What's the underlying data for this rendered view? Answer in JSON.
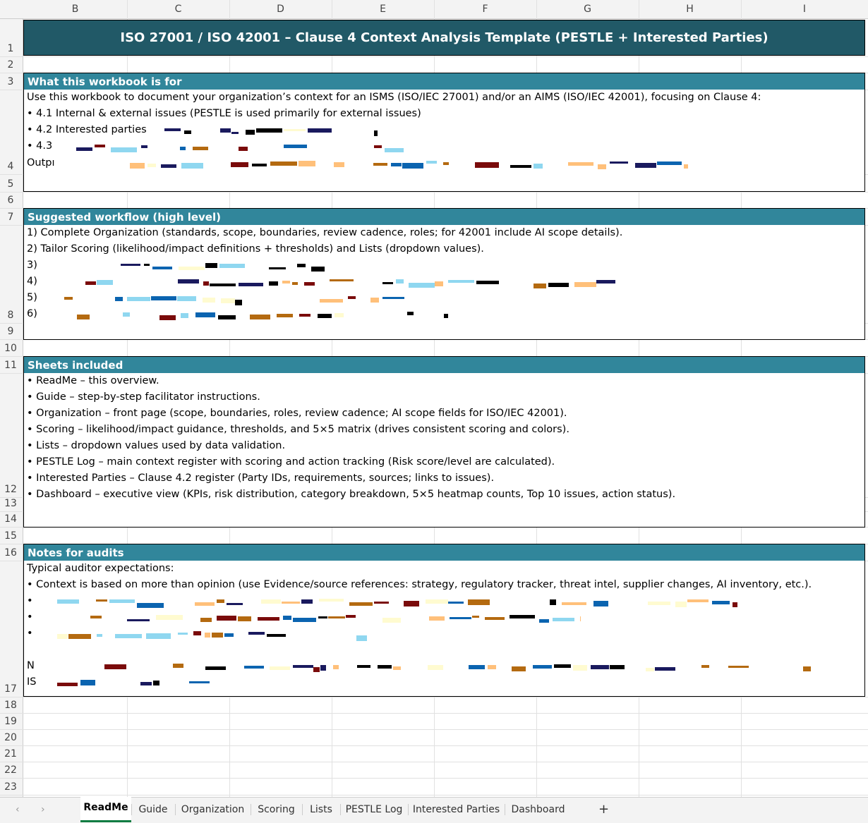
{
  "columns": [
    "B",
    "C",
    "D",
    "E",
    "F",
    "G",
    "H",
    "I"
  ],
  "rows": [
    "1",
    "2",
    "3",
    "4",
    "5",
    "6",
    "7",
    "8",
    "9",
    "10",
    "11",
    "12",
    "13",
    "14",
    "15",
    "16",
    "17",
    "18",
    "19",
    "20",
    "21",
    "22",
    "23"
  ],
  "header": {
    "title": "ISO 27001 / ISO 42001 – Clause 4 Context Analysis Template (PESTLE + Interested Parties)"
  },
  "sections": [
    {
      "title": "What this workbook is for",
      "lines": [
        "Use this workbook to document your organization’s context for an ISMS (ISO/IEC 27001) and/or an AIMS (ISO/IEC 42001), focusing on Clause 4:",
        "• 4.1 Internal & external issues (PESTLE is used primarily for external issues)",
        "• 4.2 Interested parties",
        "• 4.3",
        "Outpı"
      ]
    },
    {
      "title": "Suggested workflow (high level)",
      "lines": [
        "1) Complete Organization (standards, scope, boundaries, review cadence, roles; for 42001 include AI scope details).",
        "2) Tailor Scoring (likelihood/impact definitions + thresholds) and Lists (dropdown values).",
        "3)",
        "4)",
        "5)",
        "6)"
      ]
    },
    {
      "title": "Sheets included",
      "lines": [
        "• ReadMe – this overview.",
        "• Guide – step-by-step facilitator instructions.",
        "• Organization – front page (scope, boundaries, roles, review cadence; AI scope fields for ISO/IEC 42001).",
        "• Scoring – likelihood/impact guidance, thresholds, and 5×5 matrix (drives consistent scoring and colors).",
        "• Lists – dropdown values used by data validation.",
        "• PESTLE Log – main context register with scoring and action tracking (Risk score/level are calculated).",
        "• Interested Parties – Clause 4.2 register (Party IDs, requirements, sources; links to issues).",
        "• Dashboard – executive view (KPIs, risk distribution, category breakdown, 5×5 heatmap counts, Top 10 issues, action status)."
      ]
    },
    {
      "title": "Notes for audits",
      "lines": [
        "Typical auditor expectations:",
        "• Context is based on more than opinion (use Evidence/source references: strategy, regulatory tracker, threat intel, supplier changes, AI inventory, etc.).",
        "•",
        "•",
        "•",
        "N",
        "IS"
      ]
    }
  ],
  "tabs": [
    "ReadMe",
    "Guide",
    "Organization",
    "Scoring",
    "Lists",
    "PESTLE Log",
    "Interested Parties",
    "Dashboard"
  ],
  "active_tab": "ReadMe"
}
